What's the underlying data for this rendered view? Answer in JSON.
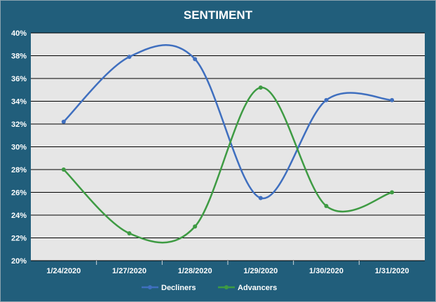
{
  "chart_data": {
    "type": "line",
    "title": "SENTIMENT",
    "xlabel": "",
    "ylabel": "",
    "categories": [
      "1/24/2020",
      "1/27/2020",
      "1/28/2020",
      "1/29/2020",
      "1/30/2020",
      "1/31/2020"
    ],
    "series": [
      {
        "name": "Decliners",
        "color": "#3f6fbf",
        "values": [
          0.322,
          0.379,
          0.377,
          0.255,
          0.341,
          0.341
        ]
      },
      {
        "name": "Advancers",
        "color": "#3e9b43",
        "values": [
          0.28,
          0.224,
          0.23,
          0.352,
          0.248,
          0.26
        ]
      }
    ],
    "ylim": [
      0.2,
      0.4
    ],
    "yticks": [
      "20%",
      "22%",
      "24%",
      "26%",
      "28%",
      "30%",
      "32%",
      "34%",
      "36%",
      "38%",
      "40%"
    ],
    "smooth": true,
    "grid": "horizontal",
    "legend": "bottom",
    "colors": {
      "frame": "#215e7b",
      "plot_area": "#e6e6e6",
      "gridline": "#000000",
      "text": "#ffffff"
    }
  }
}
